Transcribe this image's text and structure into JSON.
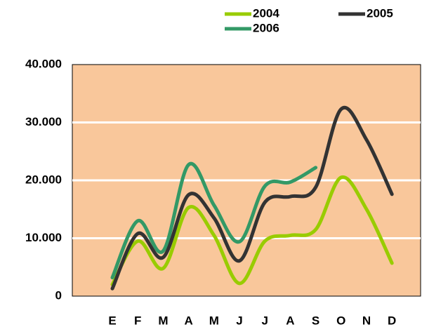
{
  "chart_data": {
    "type": "line",
    "categories": [
      "E",
      "F",
      "M",
      "A",
      "M",
      "J",
      "J",
      "A",
      "S",
      "O",
      "N",
      "D"
    ],
    "series": [
      {
        "name": "2004",
        "color": "#99cc00",
        "values": [
          2000,
          9500,
          4800,
          15300,
          10500,
          2200,
          9500,
          10500,
          11500,
          20500,
          15000,
          5700
        ]
      },
      {
        "name": "2005",
        "color": "#333333",
        "values": [
          1300,
          10800,
          6700,
          17500,
          13500,
          6100,
          16200,
          17200,
          18800,
          32300,
          27000,
          17600
        ]
      },
      {
        "name": "2006",
        "color": "#339966",
        "values": [
          3200,
          13000,
          7800,
          22700,
          15700,
          9400,
          19000,
          19700,
          22200,
          null,
          null,
          null
        ]
      }
    ],
    "ylim": [
      0,
      40000
    ],
    "yticks": [
      0,
      {
        "value": 10000,
        "label": "10.000"
      },
      {
        "value": 20000,
        "label": "20.000"
      },
      {
        "value": 30000,
        "label": "30.000"
      },
      {
        "value": 40000,
        "label": "40.000"
      }
    ],
    "grid": true,
    "background": "#f9c79b"
  }
}
